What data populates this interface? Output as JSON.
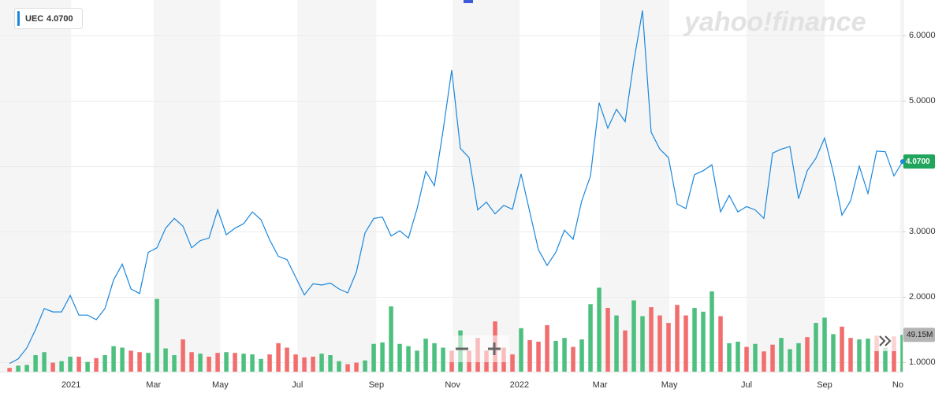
{
  "chart_data": {
    "type": "line",
    "watermark": "yahoo!finance",
    "x": [
      0,
      1,
      2,
      3,
      4,
      5,
      6,
      7,
      8,
      9,
      10,
      11,
      12,
      13,
      14,
      15,
      16,
      17,
      18,
      19,
      20,
      21,
      22,
      23,
      24,
      25,
      26,
      27,
      28,
      29,
      30,
      31,
      32,
      33,
      34,
      35,
      36,
      37,
      38,
      39,
      40,
      41,
      42,
      43,
      44,
      45,
      46,
      47,
      48,
      49,
      50,
      51,
      52,
      53,
      54,
      55,
      56,
      57,
      58,
      59,
      60,
      61,
      62,
      63,
      64,
      65,
      66,
      67,
      68,
      69,
      70,
      71,
      72,
      73,
      74,
      75,
      76,
      77,
      78,
      79,
      80,
      81,
      82,
      83,
      84,
      85,
      86,
      87,
      88,
      89,
      90,
      91,
      92,
      93,
      94,
      95,
      96,
      97,
      98,
      99,
      100,
      101,
      102,
      103
    ],
    "xlim": [
      -1.1,
      103
    ],
    "xticks": [
      {
        "value": 7.1,
        "label": "2021"
      },
      {
        "value": 16.6,
        "label": "Mar"
      },
      {
        "value": 24.3,
        "label": "May"
      },
      {
        "value": 33.2,
        "label": "Jul"
      },
      {
        "value": 42.3,
        "label": "Sep"
      },
      {
        "value": 51.1,
        "label": "Nov"
      },
      {
        "value": 58.8,
        "label": "2022"
      },
      {
        "value": 68.1,
        "label": "Mar"
      },
      {
        "value": 76.1,
        "label": "May"
      },
      {
        "value": 85.0,
        "label": "Jul"
      },
      {
        "value": 94.0,
        "label": "Sep"
      },
      {
        "value": 102.7,
        "label": "Nov"
      }
    ],
    "ylim": [
      0.855,
      6.542
    ],
    "yticks": [
      {
        "value": 1,
        "label": "1.0000"
      },
      {
        "value": 2,
        "label": "2.0000"
      },
      {
        "value": 3,
        "label": "3.0000"
      },
      {
        "value": 4,
        "label": "4.0000"
      },
      {
        "value": 5,
        "label": "5.0000"
      },
      {
        "value": 6,
        "label": "6.0000"
      }
    ],
    "y2lim": [
      0,
      495.6
    ],
    "grid": true,
    "series": [
      {
        "name": "UEC",
        "color": "#1a87dd",
        "last_value_label": "4.0700",
        "last_label_color": "#21a45b",
        "values": [
          0.98,
          1.05,
          1.22,
          1.5,
          1.82,
          1.77,
          1.77,
          2.02,
          1.72,
          1.72,
          1.65,
          1.82,
          2.26,
          2.5,
          2.12,
          2.05,
          2.68,
          2.75,
          3.05,
          3.2,
          3.08,
          2.75,
          2.86,
          2.9,
          3.33,
          2.95,
          3.05,
          3.12,
          3.3,
          3.18,
          2.87,
          2.62,
          2.57,
          2.3,
          2.03,
          2.2,
          2.18,
          2.21,
          2.12,
          2.06,
          2.38,
          2.98,
          3.2,
          3.22,
          2.93,
          3.01,
          2.9,
          3.35,
          3.92,
          3.7,
          4.55,
          5.47,
          4.27,
          4.13,
          3.33,
          3.45,
          3.27,
          3.4,
          3.34,
          3.88,
          3.3,
          2.72,
          2.48,
          2.68,
          3.02,
          2.88,
          3.47,
          3.85,
          4.97,
          4.58,
          4.87,
          4.68,
          5.6,
          6.38,
          4.52,
          4.26,
          4.13,
          3.42,
          3.35,
          3.87,
          3.93,
          4.02,
          3.3,
          3.55,
          3.3,
          3.38,
          3.33,
          3.2,
          4.2,
          4.26,
          4.3,
          3.5,
          3.93,
          4.12,
          4.43,
          3.9,
          3.25,
          3.47,
          4.0,
          3.58,
          4.23,
          4.22,
          3.85,
          4.07
        ]
      },
      {
        "axis": "y2",
        "last_value_label": "49.15M",
        "last_label_color": "#b4b4b4",
        "values": [
          5,
          8,
          9,
          22,
          26,
          12,
          14,
          20,
          20,
          13,
          18,
          22,
          34,
          32,
          28,
          26,
          25,
          97,
          31,
          22,
          43,
          26,
          24,
          20,
          25,
          26,
          25,
          24,
          23,
          17,
          23,
          38,
          32,
          23,
          19,
          20,
          24,
          22,
          14,
          10,
          12,
          15,
          37,
          39,
          87,
          37,
          34,
          28,
          44,
          38,
          32,
          28,
          55,
          28,
          45,
          28,
          67,
          32,
          23,
          58,
          42,
          40,
          62,
          41,
          45,
          33,
          43,
          90,
          112,
          85,
          75,
          55,
          95,
          74,
          86,
          75,
          65,
          89,
          75,
          85,
          80,
          107,
          74,
          38,
          40,
          33,
          37,
          27,
          36,
          45,
          30,
          38,
          46,
          65,
          72,
          50,
          60,
          45,
          43,
          44,
          48,
          32,
          47,
          49.15
        ],
        "colors": [
          "#f26d6d",
          "#4dc07f",
          "#4dc07f",
          "#4dc07f",
          "#4dc07f",
          "#f26d6d",
          "#4dc07f",
          "#4dc07f",
          "#f26d6d",
          "#4dc07f",
          "#f26d6d",
          "#4dc07f",
          "#4dc07f",
          "#4dc07f",
          "#f26d6d",
          "#f26d6d",
          "#4dc07f",
          "#4dc07f",
          "#4dc07f",
          "#4dc07f",
          "#f26d6d",
          "#f26d6d",
          "#4dc07f",
          "#f26d6d",
          "#f26d6d",
          "#4dc07f",
          "#f26d6d",
          "#4dc07f",
          "#4dc07f",
          "#4dc07f",
          "#f26d6d",
          "#f26d6d",
          "#f26d6d",
          "#f26d6d",
          "#f26d6d",
          "#f26d6d",
          "#4dc07f",
          "#4dc07f",
          "#4dc07f",
          "#f26d6d",
          "#f26d6d",
          "#4dc07f",
          "#4dc07f",
          "#4dc07f",
          "#4dc07f",
          "#4dc07f",
          "#4dc07f",
          "#4dc07f",
          "#4dc07f",
          "#4dc07f",
          "#4dc07f",
          "#f26d6d",
          "#4dc07f",
          "#f26d6d",
          "#f26d6d",
          "#f26d6d",
          "#f26d6d",
          "#f26d6d",
          "#f26d6d",
          "#4dc07f",
          "#f26d6d",
          "#f26d6d",
          "#f26d6d",
          "#4dc07f",
          "#4dc07f",
          "#f26d6d",
          "#4dc07f",
          "#4dc07f",
          "#4dc07f",
          "#f26d6d",
          "#4dc07f",
          "#f26d6d",
          "#4dc07f",
          "#4dc07f",
          "#f26d6d",
          "#f26d6d",
          "#f26d6d",
          "#f26d6d",
          "#f26d6d",
          "#4dc07f",
          "#4dc07f",
          "#4dc07f",
          "#f26d6d",
          "#4dc07f",
          "#4dc07f",
          "#f26d6d",
          "#4dc07f",
          "#f26d6d",
          "#f26d6d",
          "#4dc07f",
          "#4dc07f",
          "#4dc07f",
          "#f26d6d",
          "#4dc07f",
          "#4dc07f",
          "#4dc07f",
          "#f26d6d",
          "#f26d6d",
          "#4dc07f",
          "#4dc07f",
          "#f26d6d",
          "#4dc07f",
          "#f26d6d",
          "#4dc07f"
        ]
      }
    ]
  }
}
